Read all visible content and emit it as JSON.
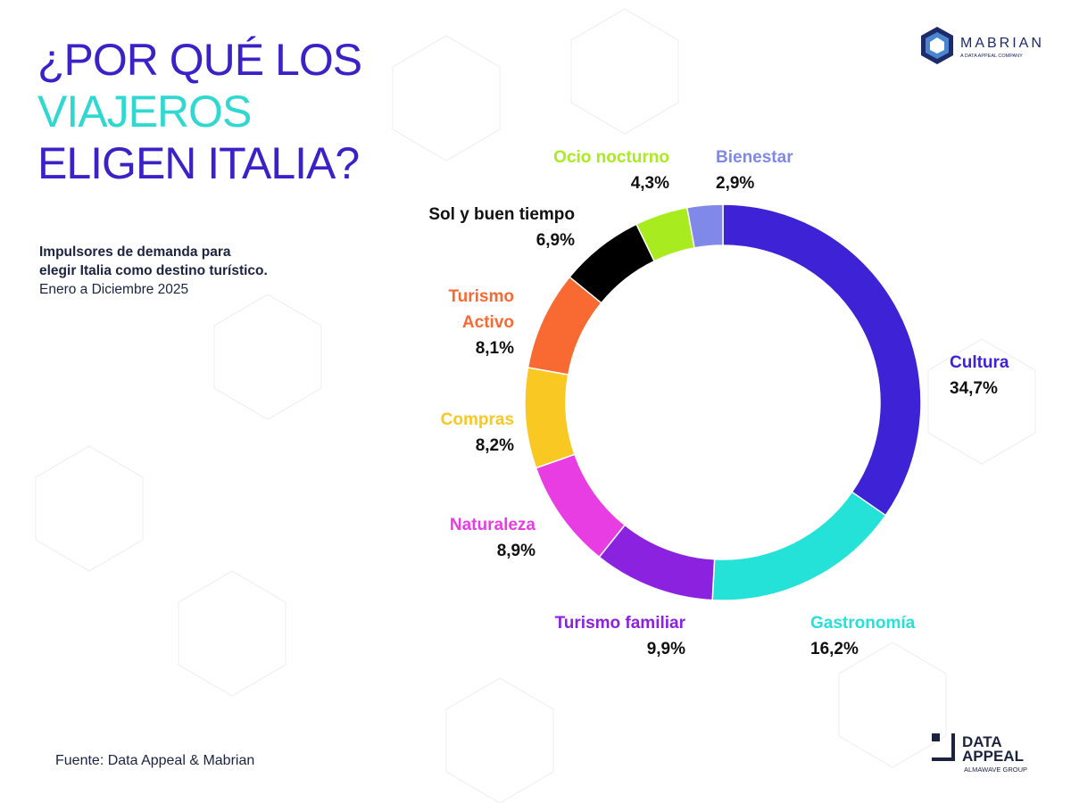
{
  "title": {
    "line1": "¿POR QUÉ LOS",
    "line2": "VIAJEROS",
    "line3": "ELIGEN ITALIA?"
  },
  "subtitle": {
    "line1": "Impulsores de demanda para",
    "line2": "elegir Italia como destino turístico.",
    "period": "Enero a Diciembre 2025"
  },
  "source": "Fuente: Data Appeal & Mabrian",
  "logos": {
    "mabrian": "MABRIAN",
    "mabrian_tag": "A DATA APPEAL COMPANY",
    "dataappeal_1": "DATA",
    "dataappeal_2": "APPEAL",
    "dataappeal_tag": "ALMAWAVE GROUP"
  },
  "colors": {
    "title": "#3a22c8",
    "title_highlight": "#2fd8d0"
  },
  "chart_data": {
    "type": "pie",
    "donut": true,
    "start": "top, clockwise",
    "slices": [
      {
        "name": "Cultura",
        "value": 34.7,
        "label": "34,7%",
        "color": "#3d22d6"
      },
      {
        "name": "Gastronomía",
        "value": 16.2,
        "label": "16,2%",
        "color": "#24e2d8"
      },
      {
        "name": "Turismo familiar",
        "value": 9.9,
        "label": "9,9%",
        "color": "#8a22e0"
      },
      {
        "name": "Naturaleza",
        "value": 8.9,
        "label": "8,9%",
        "color": "#e83de2"
      },
      {
        "name": "Compras",
        "value": 8.2,
        "label": "8,2%",
        "color": "#f9c823"
      },
      {
        "name": "Turismo Activo",
        "value": 8.1,
        "label": "8,1%",
        "color": "#f96a32"
      },
      {
        "name": "Sol y buen tiempo",
        "value": 6.9,
        "label": "6,9%",
        "color": "#000000"
      },
      {
        "name": "Ocio nocturno",
        "value": 4.3,
        "label": "4,3%",
        "color": "#a8eb1e"
      },
      {
        "name": "Bienestar",
        "value": 2.9,
        "label": "2,9%",
        "color": "#8088e8"
      }
    ]
  }
}
